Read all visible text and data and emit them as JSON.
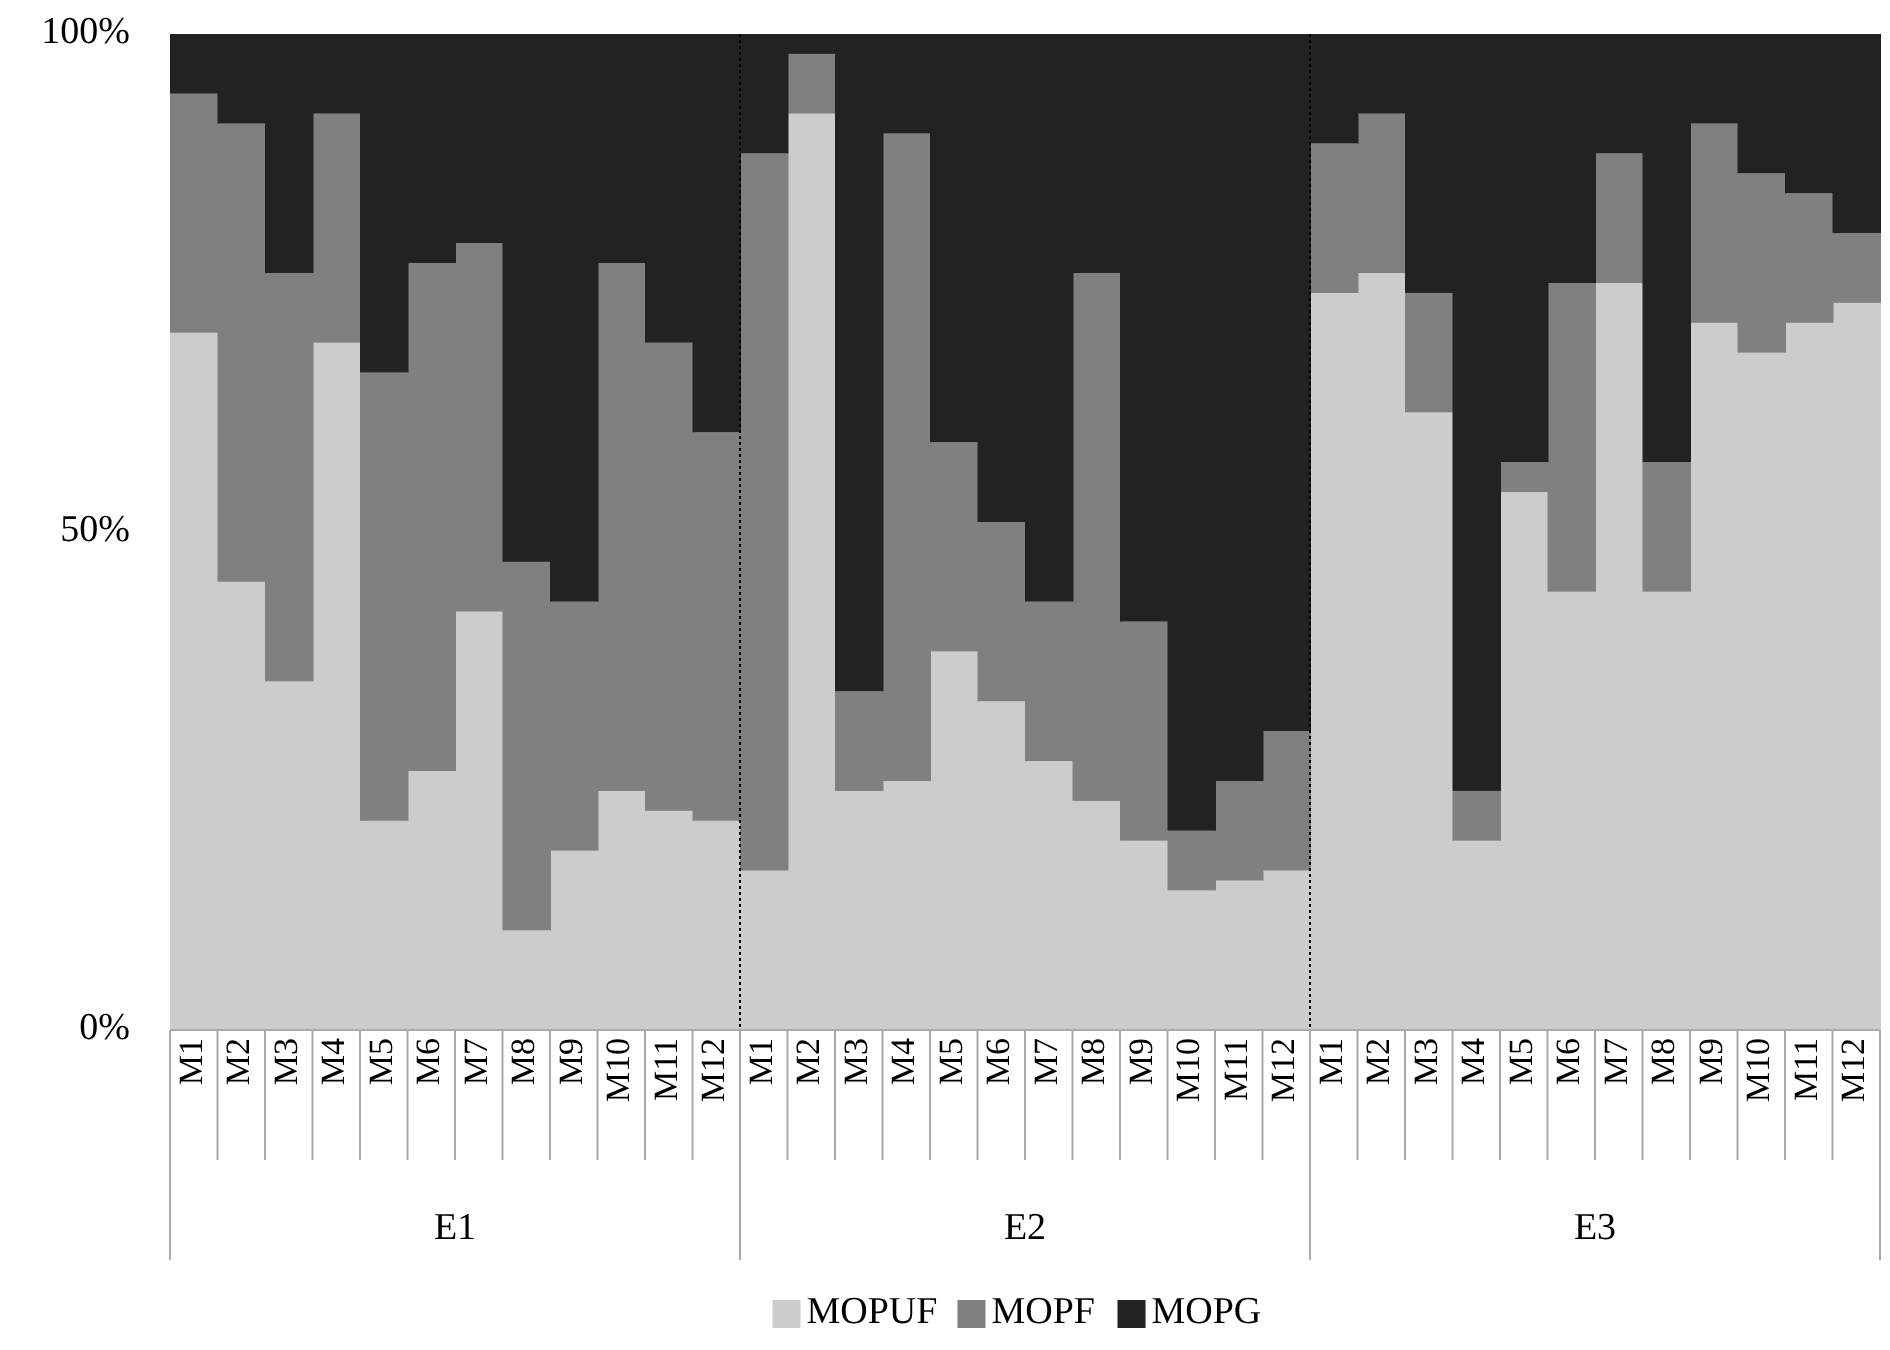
{
  "chart_data": {
    "type": "bar",
    "stacked": true,
    "relative": false,
    "categories": [
      "M1",
      "M2",
      "M3",
      "M4",
      "M5",
      "M6",
      "M7",
      "M8",
      "M9",
      "M10",
      "M11",
      "M12",
      "M1",
      "M2",
      "M3",
      "M4",
      "M5",
      "M6",
      "M7",
      "M8",
      "M9",
      "M10",
      "M11",
      "M12",
      "M1",
      "M2",
      "M3",
      "M4",
      "M5",
      "M6",
      "M7",
      "M8",
      "M9",
      "M10",
      "M11",
      "M12"
    ],
    "series": [
      {
        "name": "MOPUF",
        "color": "#cccccc",
        "values": [
          70,
          45,
          35,
          69,
          21,
          26,
          42,
          10,
          18,
          24,
          22,
          21,
          16,
          92,
          24,
          25,
          38,
          33,
          27,
          23,
          19,
          14,
          15,
          16,
          74,
          76,
          62,
          19,
          54,
          44,
          75,
          44,
          71,
          68,
          71,
          73
        ]
      },
      {
        "name": "MOPF",
        "color": "#808080",
        "values": [
          24,
          46,
          41,
          23,
          45,
          51,
          37,
          37,
          25,
          53,
          47,
          39,
          72,
          6,
          10,
          65,
          21,
          18,
          16,
          53,
          22,
          6,
          10,
          14,
          15,
          16,
          12,
          5,
          3,
          31,
          13,
          13,
          20,
          18,
          13,
          7
        ]
      },
      {
        "name": "MOPG",
        "color": "#222222",
        "values": [
          6,
          9,
          24,
          8,
          34,
          23,
          21,
          53,
          57,
          23,
          31,
          40,
          12,
          2,
          66,
          10,
          41,
          49,
          57,
          24,
          59,
          80,
          75,
          70,
          11,
          8,
          26,
          76,
          43,
          25,
          12,
          43,
          9,
          14,
          16,
          20
        ]
      }
    ],
    "ylim": [
      0,
      100
    ],
    "yticks": [
      {
        "value": 0,
        "label": "0%"
      },
      {
        "value": 50,
        "label": "50%"
      },
      {
        "value": 100,
        "label": "100%"
      }
    ],
    "annotations": [
      "E1",
      "E2",
      "E3"
    ],
    "grid": false,
    "legend": "bottom"
  }
}
